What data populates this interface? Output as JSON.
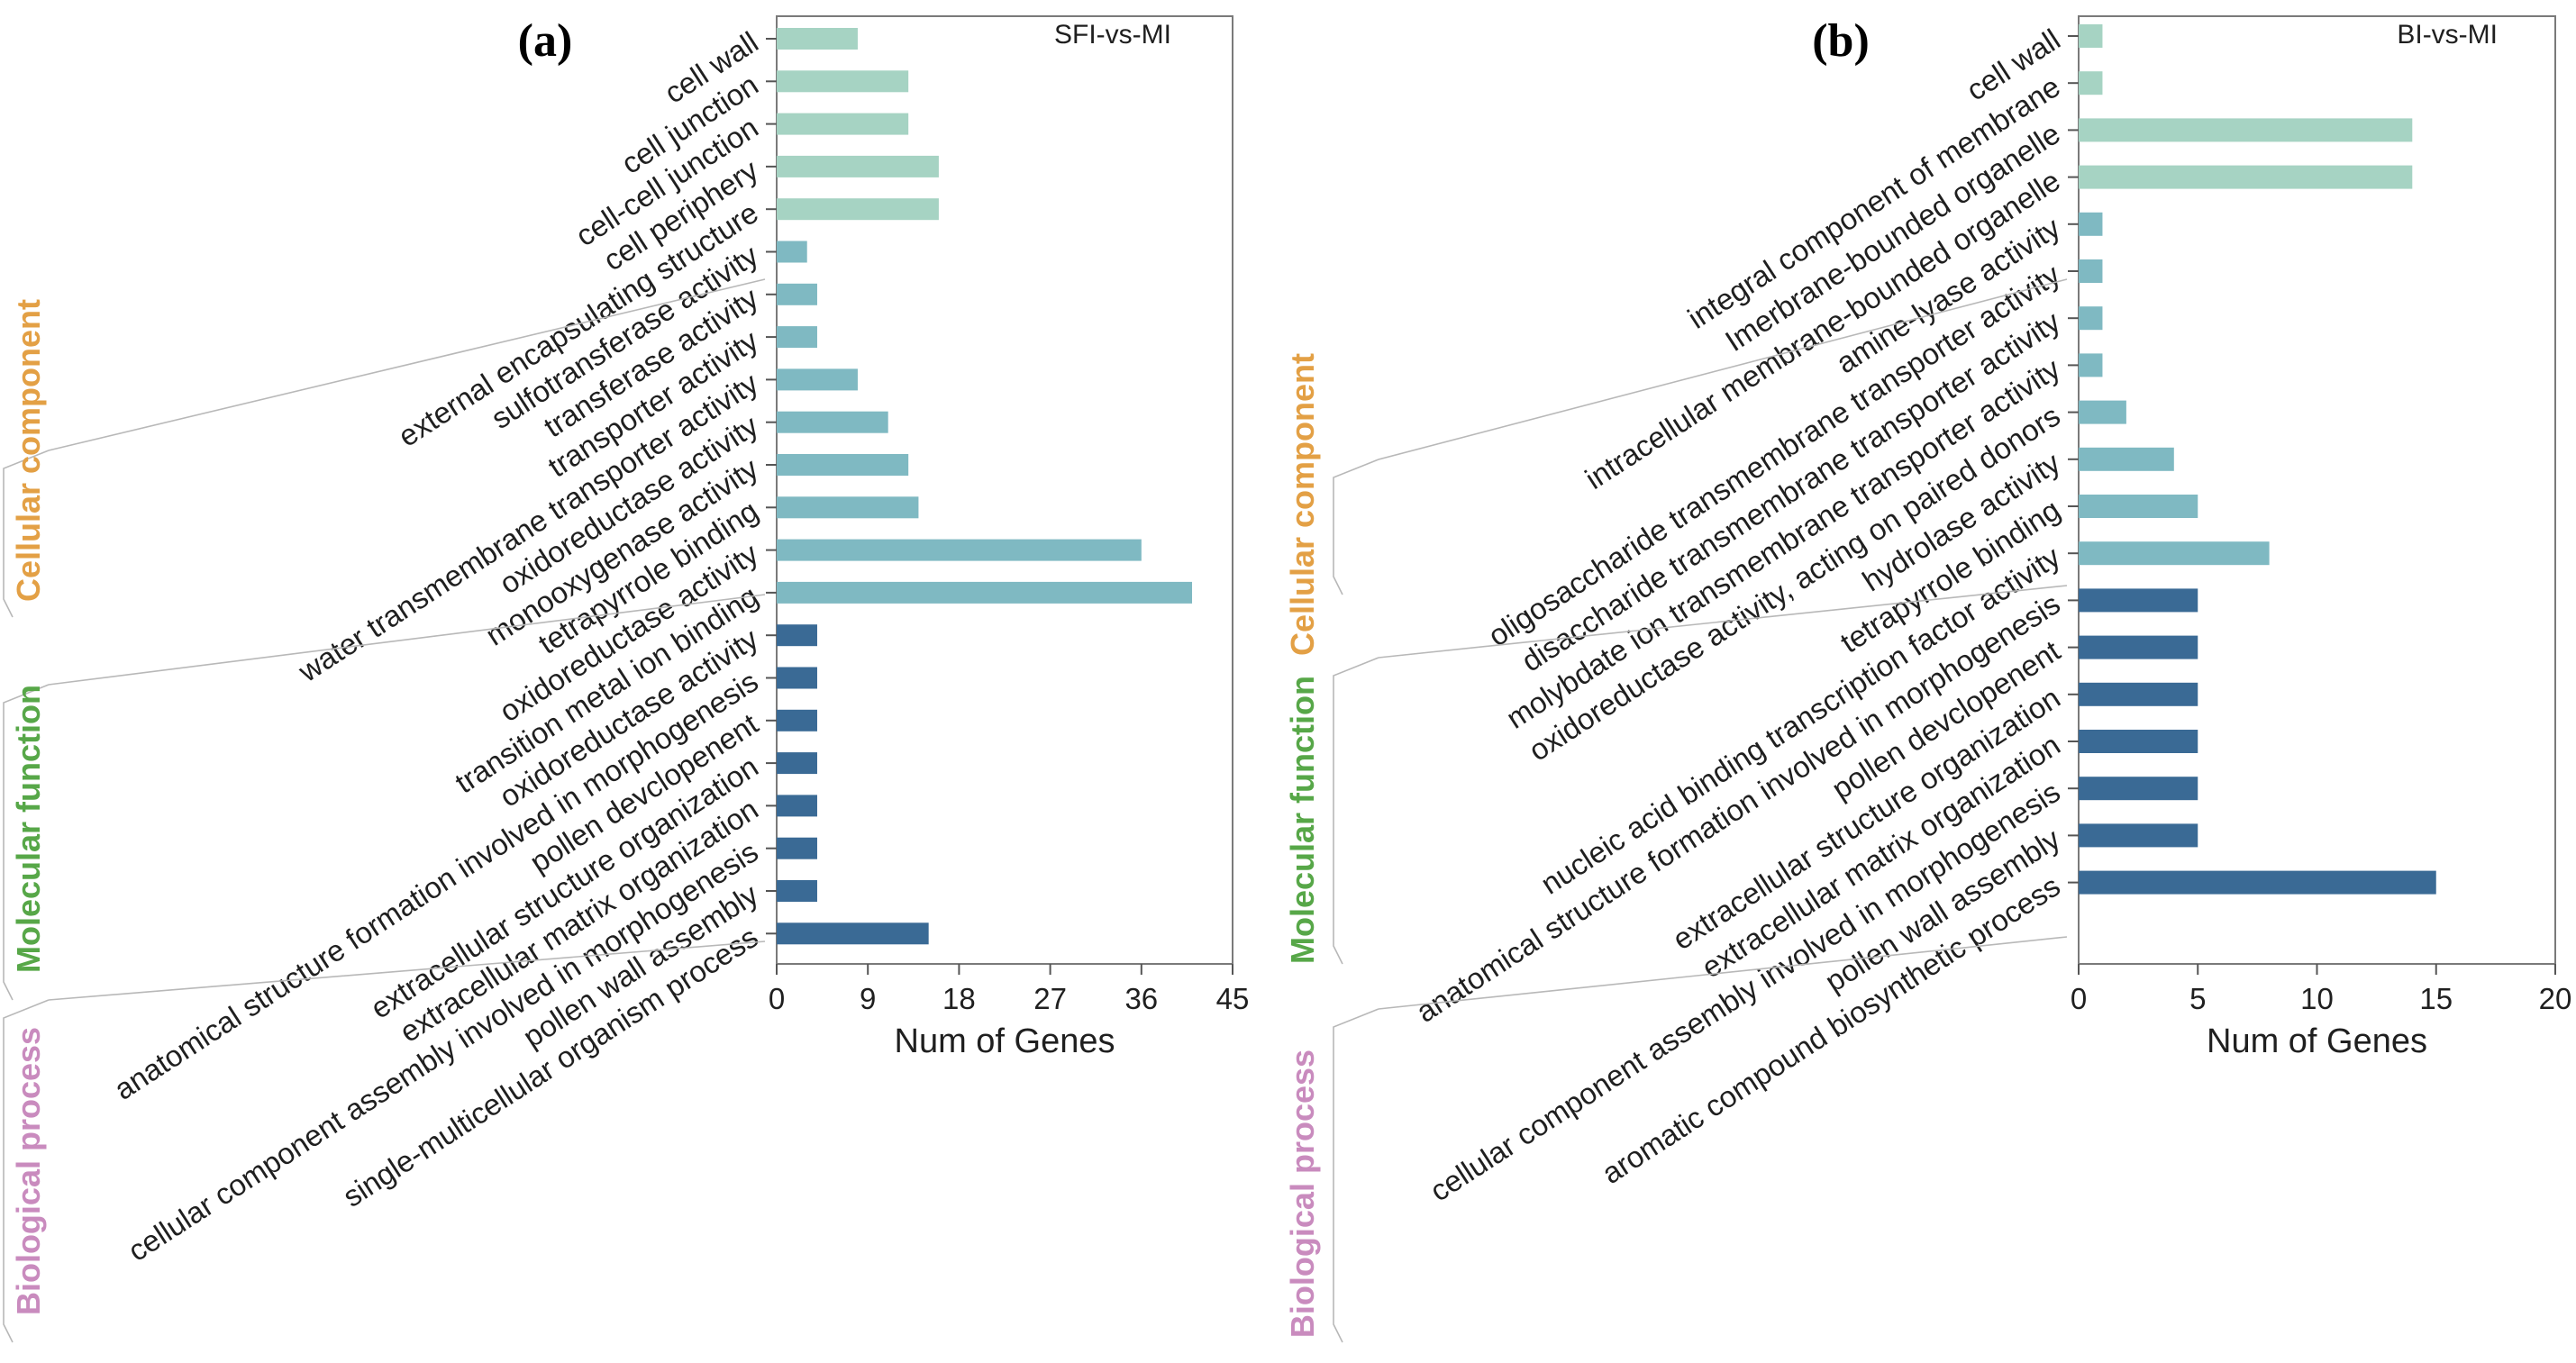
{
  "colors": {
    "cellular_component": "#a6d3c3",
    "molecular_function": "#7fb9c2",
    "biological_process": "#3a6a95",
    "group_cellular": "#e3a045",
    "group_molecular": "#57a748",
    "group_biological": "#c98bbe"
  },
  "group_labels": {
    "cellular": "Cellular component",
    "molecular": "Molecular function",
    "biological": "Biological process"
  },
  "chart_data": [
    {
      "type": "bar",
      "panel": "(a)",
      "title": "SFI-vs-MI",
      "xlabel": "Num of Genes",
      "ylabel": "",
      "xlim": [
        0,
        45
      ],
      "xticks": [
        0,
        9,
        18,
        27,
        36,
        45
      ],
      "categories": [
        "cell wall",
        "cell junction",
        "cell-cell junction",
        "cell periphery",
        "external encapsulating structure",
        "sulfotransferase activity",
        "transferase activity",
        "transporter activity",
        "water transmembrane transporter activity",
        "oxidoreductase activity",
        "monooxygenase activity",
        "tetrapyrrole binding",
        "oxidoreductase activity",
        "transition metal ion binding",
        "oxidoreductase activity",
        "anatomical structure formation involved in morphogenesis",
        "pollen devclopenent",
        "extracellular structure organization",
        "extracellular matrix organization",
        "cellular component assembly involved in morphogenesis",
        "pollen wall assembly",
        "single-multicellular organism process"
      ],
      "values": [
        8,
        13,
        13,
        16,
        16,
        3,
        4,
        4,
        8,
        11,
        13,
        14,
        36,
        41,
        4,
        4,
        4,
        4,
        4,
        4,
        4,
        15
      ],
      "groups": [
        "cellular",
        "cellular",
        "cellular",
        "cellular",
        "cellular",
        "molecular",
        "molecular",
        "molecular",
        "molecular",
        "molecular",
        "molecular",
        "molecular",
        "molecular",
        "molecular",
        "biological",
        "biological",
        "biological",
        "biological",
        "biological",
        "biological",
        "biological",
        "biological"
      ]
    },
    {
      "type": "bar",
      "panel": "(b)",
      "title": "BI-vs-MI",
      "xlabel": "Num of Genes",
      "ylabel": "",
      "xlim": [
        0,
        20
      ],
      "xticks": [
        0,
        5,
        10,
        15,
        20
      ],
      "categories": [
        "cell wall",
        "integral component of membrane",
        "Imerbrane-bounded organelle",
        "intracellular membrane-bounded organelle",
        "amine-lyase activity",
        "oligosaccharide transmembrane transporter activity",
        "disaccharide transmembrane transporter activity",
        "molybdate ion transmembrane transporter activity",
        "oxidoreductase activity, acting on paired donors",
        "hydrolase activity",
        "tetrapyrrole binding",
        "nucleic acid binding transcription factor activity",
        "anatomical structure formation involved in morphogenesis",
        "pollen devclopenent",
        "extracellular structure organization",
        "extracellular matrix organization",
        "cellular component assembly involved in morphogenesis",
        "pollen wall assembly",
        "aromatic compound biosynthetic process"
      ],
      "values": [
        1,
        1,
        14,
        14,
        1,
        1,
        1,
        1,
        2,
        4,
        5,
        8,
        5,
        5,
        5,
        5,
        5,
        5,
        15
      ],
      "groups": [
        "cellular",
        "cellular",
        "cellular",
        "cellular",
        "molecular",
        "molecular",
        "molecular",
        "molecular",
        "molecular",
        "molecular",
        "molecular",
        "molecular",
        "biological",
        "biological",
        "biological",
        "biological",
        "biological",
        "biological",
        "biological"
      ]
    }
  ]
}
